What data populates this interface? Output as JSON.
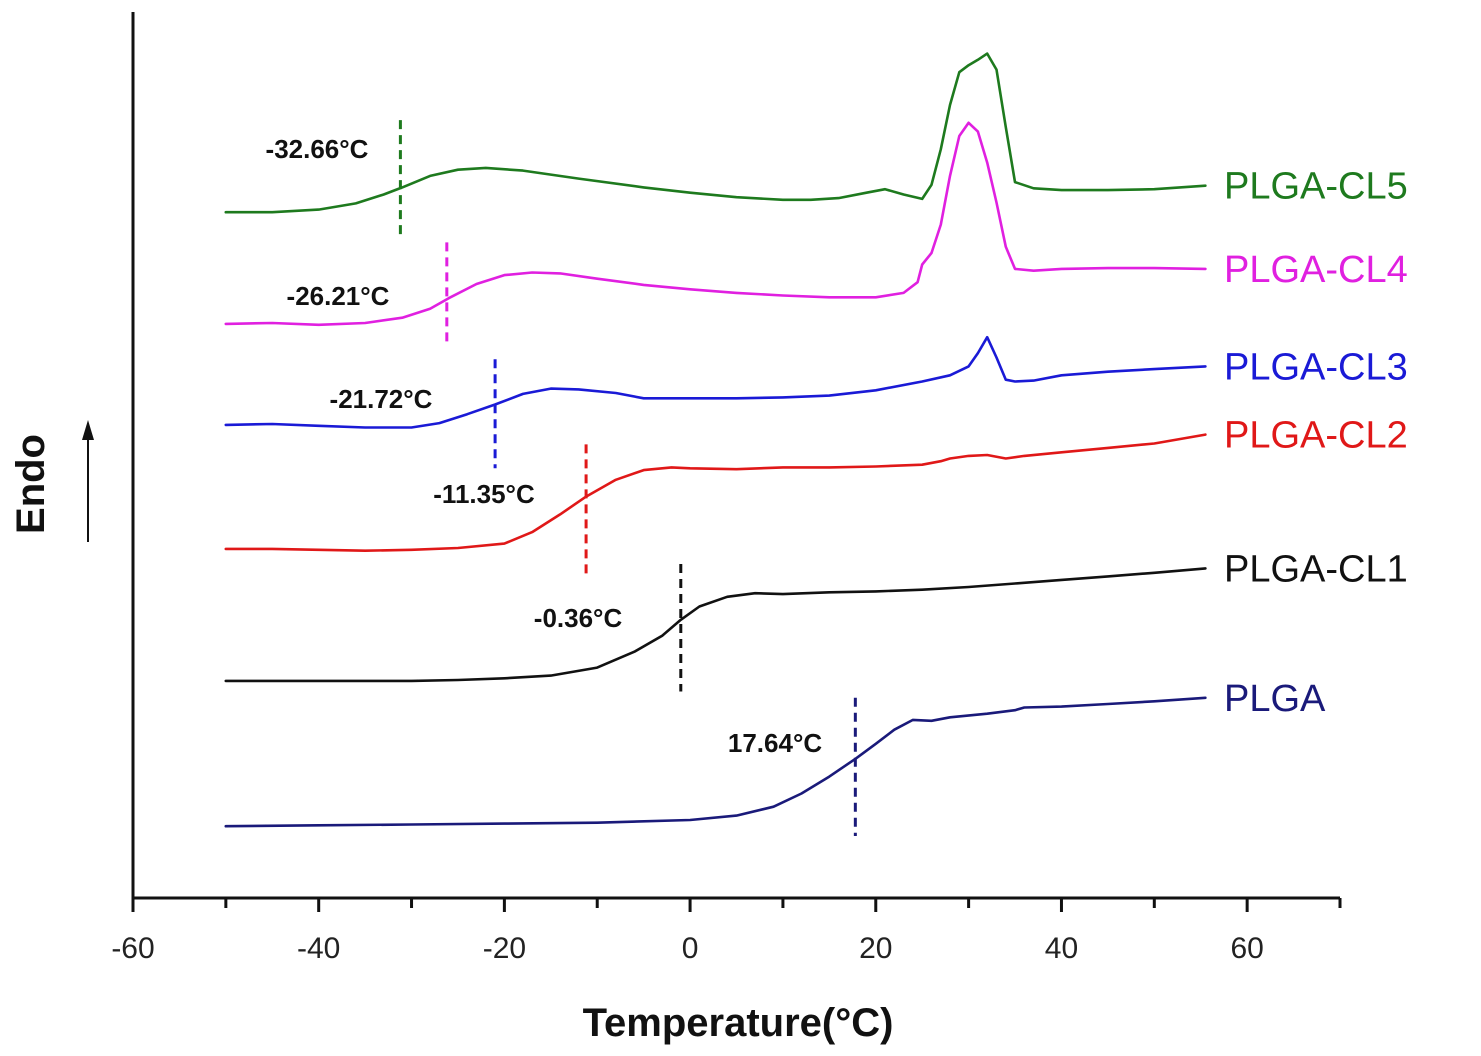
{
  "chart_data": {
    "type": "line",
    "title": "",
    "xlabel": "Temperature(°C)",
    "ylabel": "Endo",
    "ylabel_arrow": "up",
    "xlim": [
      -60,
      70
    ],
    "ylim": [
      0,
      100
    ],
    "y_units": "heat flow (a.u., stacked offsets)",
    "xticks": [
      -60,
      -40,
      -20,
      0,
      20,
      40,
      60
    ],
    "xtick_labels": [
      "-60",
      "-40",
      "-20",
      "0",
      "20",
      "40",
      "60"
    ],
    "x_minor_ticks": [
      -50,
      -30,
      -10,
      10,
      30,
      50,
      70
    ],
    "grid": false,
    "legend_placement": "right (inline labels at trace ends)",
    "series": [
      {
        "name": "PLGA-CL5",
        "color": "#1e7a1e",
        "tg": -32.66,
        "tg_label": "-32.66°C",
        "tg_marker_x": -31.2,
        "tg_marker_y": [
          74.5,
          87.8
        ],
        "x": [
          -50,
          -45,
          -40,
          -36,
          -33,
          -31,
          -28,
          -25,
          -22,
          -18,
          -12,
          -5,
          0,
          5,
          10,
          13,
          16,
          19,
          21,
          23,
          25,
          26,
          27,
          28,
          29,
          30,
          31,
          32,
          33,
          34,
          35,
          37,
          40,
          45,
          50,
          55.5
        ],
        "y": [
          77.4,
          77.4,
          77.7,
          78.4,
          79.4,
          80.2,
          81.5,
          82.2,
          82.4,
          82.1,
          81.2,
          80.2,
          79.6,
          79.1,
          78.8,
          78.8,
          79.0,
          79.6,
          80.0,
          79.4,
          78.9,
          80.5,
          84.5,
          89.5,
          93.2,
          94.0,
          94.6,
          95.3,
          93.5,
          87.0,
          80.8,
          80.1,
          79.9,
          79.9,
          80.0,
          80.4
        ]
      },
      {
        "name": "PLGA-CL4",
        "color": "#e020e0",
        "tg": -26.21,
        "tg_label": "-26.21°C",
        "tg_marker_x": -26.2,
        "tg_marker_y": [
          62.8,
          74.0
        ],
        "x": [
          -50,
          -45,
          -40,
          -35,
          -31,
          -28,
          -26,
          -23,
          -20,
          -17,
          -14,
          -10,
          -5,
          0,
          5,
          10,
          15,
          20,
          23,
          24.5,
          25,
          26,
          27,
          28,
          29,
          30,
          31,
          32,
          33,
          34,
          35,
          37,
          40,
          45,
          50,
          55.5
        ],
        "y": [
          64.8,
          64.9,
          64.7,
          64.9,
          65.5,
          66.5,
          67.7,
          69.3,
          70.3,
          70.6,
          70.5,
          69.9,
          69.2,
          68.7,
          68.3,
          68.0,
          67.8,
          67.8,
          68.3,
          69.5,
          71.5,
          72.8,
          76.0,
          81.5,
          86.0,
          87.5,
          86.5,
          83.0,
          78.5,
          73.5,
          71.0,
          70.8,
          71.0,
          71.1,
          71.1,
          71.0
        ]
      },
      {
        "name": "PLGA-CL3",
        "color": "#1a1ad6",
        "tg": -21.72,
        "tg_label": "-21.72°C",
        "tg_marker_x": -21.0,
        "tg_marker_y": [
          48.5,
          60.8
        ],
        "x": [
          -50,
          -45,
          -40,
          -35,
          -30,
          -27,
          -24,
          -21,
          -18,
          -15,
          -12,
          -8,
          -5,
          0,
          5,
          10,
          15,
          20,
          25,
          28,
          30,
          31,
          32,
          33,
          34,
          35,
          37,
          40,
          45,
          50,
          55.5
        ],
        "y": [
          53.4,
          53.5,
          53.3,
          53.1,
          53.1,
          53.6,
          54.6,
          55.7,
          56.9,
          57.5,
          57.4,
          57.0,
          56.4,
          56.4,
          56.4,
          56.5,
          56.7,
          57.3,
          58.3,
          59.0,
          60.0,
          61.5,
          63.3,
          61.0,
          58.5,
          58.3,
          58.4,
          59.0,
          59.4,
          59.7,
          60.0
        ]
      },
      {
        "name": "PLGA-CL2",
        "color": "#e01818",
        "tg": -11.35,
        "tg_label": "-11.35°C",
        "tg_marker_x": -11.2,
        "tg_marker_y": [
          36.2,
          51.2
        ],
        "x": [
          -50,
          -45,
          -40,
          -35,
          -30,
          -25,
          -20,
          -17,
          -14,
          -11.2,
          -8,
          -5,
          -2,
          0,
          5,
          10,
          15,
          20,
          25,
          27,
          28,
          30,
          32,
          34,
          36,
          40,
          45,
          50,
          55.5
        ],
        "y": [
          39.4,
          39.4,
          39.3,
          39.2,
          39.3,
          39.5,
          40.0,
          41.3,
          43.3,
          45.3,
          47.2,
          48.3,
          48.6,
          48.5,
          48.4,
          48.6,
          48.6,
          48.7,
          48.9,
          49.3,
          49.6,
          49.9,
          50.0,
          49.6,
          49.9,
          50.3,
          50.8,
          51.3,
          52.3
        ]
      },
      {
        "name": "PLGA-CL1",
        "color": "#111111",
        "tg": -0.36,
        "tg_label": "-0.36°C",
        "tg_marker_x": -1.0,
        "tg_marker_y": [
          23.3,
          37.7
        ],
        "x": [
          -50,
          -45,
          -40,
          -35,
          -30,
          -25,
          -20,
          -15,
          -10,
          -6,
          -3,
          -1,
          1,
          4,
          7,
          10,
          15,
          20,
          25,
          30,
          35,
          40,
          45,
          50,
          55.5
        ],
        "y": [
          24.5,
          24.5,
          24.5,
          24.5,
          24.5,
          24.6,
          24.8,
          25.1,
          26.0,
          27.8,
          29.6,
          31.4,
          32.9,
          34.0,
          34.4,
          34.3,
          34.5,
          34.6,
          34.8,
          35.1,
          35.5,
          35.9,
          36.3,
          36.7,
          37.2
        ]
      },
      {
        "name": "PLGA",
        "color": "#1a1a7a",
        "tg": 17.64,
        "tg_label": "17.64°C",
        "tg_marker_x": 17.8,
        "tg_marker_y": [
          7.0,
          22.6
        ],
        "x": [
          -50,
          -40,
          -30,
          -20,
          -10,
          0,
          5,
          9,
          12,
          15,
          17.8,
          20,
          22,
          24,
          26,
          28,
          32,
          35,
          36,
          40,
          45,
          50,
          55.5
        ],
        "y": [
          8.1,
          8.2,
          8.3,
          8.4,
          8.5,
          8.8,
          9.3,
          10.3,
          11.8,
          13.7,
          15.7,
          17.4,
          19.0,
          20.1,
          20.0,
          20.4,
          20.8,
          21.2,
          21.5,
          21.6,
          21.9,
          22.2,
          22.6
        ]
      }
    ]
  }
}
